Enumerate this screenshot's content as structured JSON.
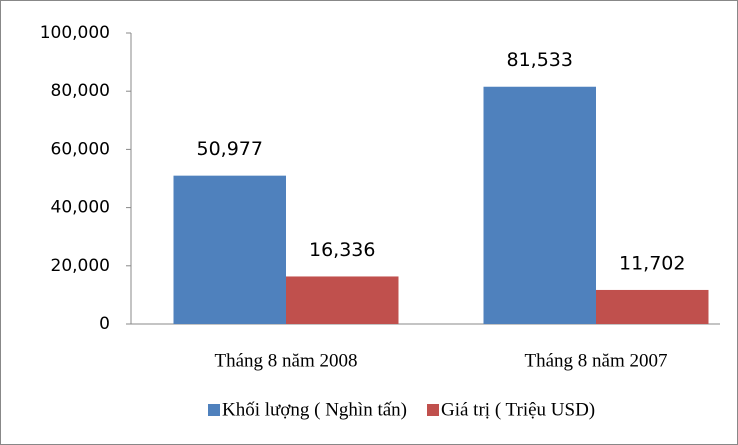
{
  "chart_data": {
    "type": "bar",
    "categories": [
      "Tháng 8 năm 2008",
      "Tháng 8 năm 2007"
    ],
    "series": [
      {
        "name": "Khối lượng ( Nghìn tấn)",
        "color": "#4f81bd",
        "values": [
          50977,
          81533
        ],
        "value_labels": [
          "50,977",
          "81,533"
        ]
      },
      {
        "name": "Giá trị ( Triệu USD)",
        "color": "#c0504d",
        "values": [
          16336,
          11702
        ],
        "value_labels": [
          "16,336",
          "11,702"
        ]
      }
    ],
    "ylim": [
      0,
      100000
    ],
    "yticks": [
      0,
      {
        "value": 20000,
        "label": "20,000"
      },
      {
        "value": 40000,
        "label": "40,000"
      },
      {
        "value": 60000,
        "label": "60,000"
      },
      {
        "value": 80000,
        "label": "80,000"
      },
      {
        "value": 100000,
        "label": "100,000"
      }
    ],
    "grid": false,
    "legend": "bottom"
  }
}
